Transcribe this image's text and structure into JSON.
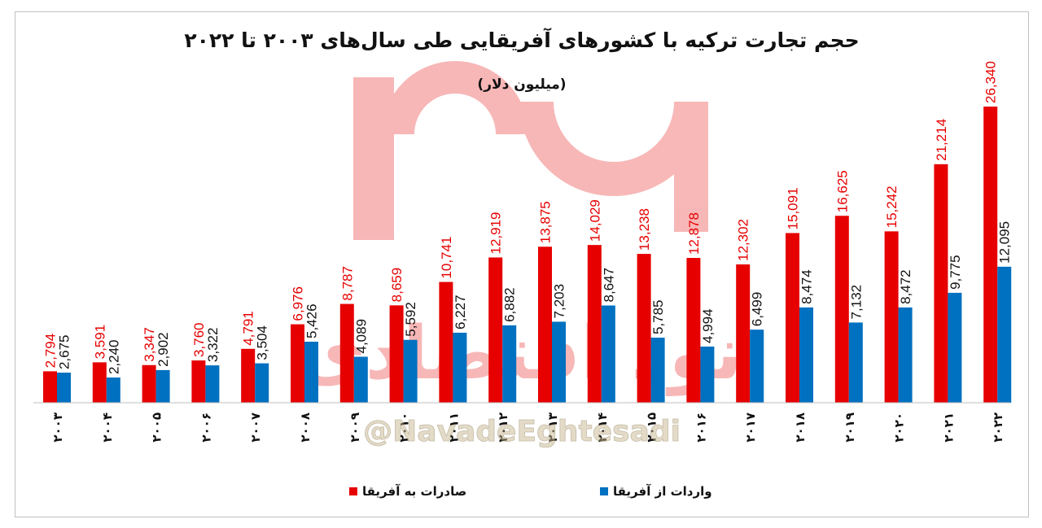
{
  "chart_data": {
    "type": "bar",
    "title": "حجم تجارت ترکیه با کشورهای آفریقایی طی سال‌های ۲۰۰۳ تا ۲۰۲۲",
    "subtitle": "(میلیون دلار)",
    "categories": [
      "۲۰۰۳",
      "۲۰۰۴",
      "۲۰۰۵",
      "۲۰۰۶",
      "۲۰۰۷",
      "۲۰۰۸",
      "۲۰۰۹",
      "۲۰۱۰",
      "۲۰۱۱",
      "۲۰۱۲",
      "۲۰۱۳",
      "۲۰۱۴",
      "۲۰۱۵",
      "۲۰۱۶",
      "۲۰۱۷",
      "۲۰۱۸",
      "۲۰۱۹",
      "۲۰۲۰",
      "۲۰۲۱",
      "۲۰۲۲"
    ],
    "series": [
      {
        "name": "صادرات به آفریقا",
        "color": "#e60000",
        "values": [
          2794,
          3591,
          3347,
          3760,
          4791,
          6976,
          8787,
          8659,
          10741,
          12919,
          13875,
          14029,
          13238,
          12878,
          12302,
          15091,
          16625,
          15242,
          21214,
          26340
        ],
        "labels": [
          "2,794",
          "3,591",
          "3,347",
          "3,760",
          "4,791",
          "6,976",
          "8,787",
          "8,659",
          "10,741",
          "12,919",
          "13,875",
          "14,029",
          "13,238",
          "12,878",
          "12,302",
          "15,091",
          "16,625",
          "15,242",
          "21,214",
          "26,340"
        ]
      },
      {
        "name": "واردات از آفریقا",
        "color": "#0070c0",
        "values": [
          2675,
          2240,
          2902,
          3322,
          3504,
          5426,
          4089,
          5592,
          6227,
          6882,
          7203,
          8647,
          5785,
          4994,
          6499,
          8474,
          7132,
          8472,
          9775,
          12095
        ],
        "labels": [
          "2,675",
          "2,240",
          "2,902",
          "3,322",
          "3,504",
          "5,426",
          "4,089",
          "5,592",
          "6,227",
          "6,882",
          "7,203",
          "8,647",
          "5,785",
          "4,994",
          "6,499",
          "8,474",
          "7,132",
          "8,472",
          "9,775",
          "12,095"
        ]
      }
    ],
    "ylim": [
      0,
      26340
    ],
    "grid": false,
    "legend": "bottom"
  },
  "watermark": {
    "handle": "@NavadeEghtesadi",
    "brand": "نود اقتصادی"
  }
}
